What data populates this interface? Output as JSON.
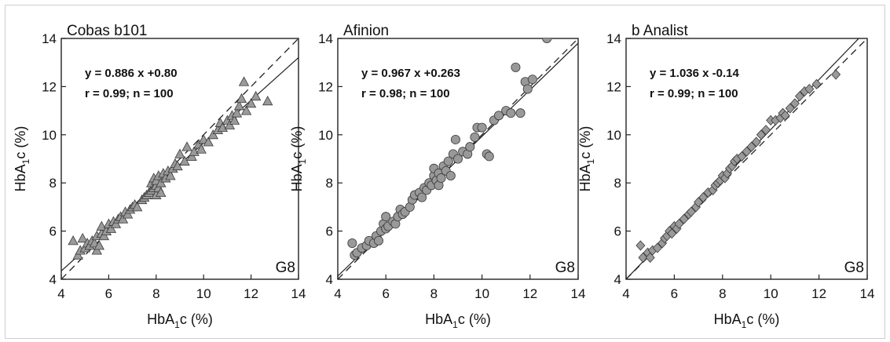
{
  "chart_data": [
    {
      "type": "scatter",
      "title": "Cobas b101",
      "xlabel": "HbA₁c (%)",
      "ylabel": "HbA₁c (%)",
      "corner_label": "G8",
      "xlim": [
        4,
        14
      ],
      "ylim": [
        4,
        14
      ],
      "xticks": [
        "4",
        "6",
        "8",
        "10",
        "12",
        "14"
      ],
      "yticks": [
        "4",
        "6",
        "8",
        "10",
        "12",
        "14"
      ],
      "equation": "y = 0.886 x +0.80",
      "stats": "r = 0.99; n = 100",
      "regression": {
        "slope": 0.886,
        "intercept": 0.8
      },
      "identity_line": true,
      "marker": "triangle",
      "marker_color": "#9a9a9a",
      "points": [
        [
          4.5,
          5.6
        ],
        [
          4.7,
          5.0
        ],
        [
          4.8,
          5.2
        ],
        [
          4.9,
          5.7
        ],
        [
          5.0,
          5.3
        ],
        [
          5.1,
          5.5
        ],
        [
          5.2,
          5.4
        ],
        [
          5.3,
          5.6
        ],
        [
          5.4,
          5.5
        ],
        [
          5.5,
          5.2
        ],
        [
          5.5,
          5.8
        ],
        [
          5.6,
          5.4
        ],
        [
          5.7,
          5.9
        ],
        [
          5.7,
          6.2
        ],
        [
          5.8,
          5.8
        ],
        [
          5.9,
          6.0
        ],
        [
          6.0,
          6.3
        ],
        [
          6.1,
          6.1
        ],
        [
          6.2,
          6.4
        ],
        [
          6.3,
          6.3
        ],
        [
          6.4,
          6.5
        ],
        [
          6.5,
          6.6
        ],
        [
          6.6,
          6.5
        ],
        [
          6.7,
          6.8
        ],
        [
          6.8,
          6.7
        ],
        [
          6.9,
          6.9
        ],
        [
          7.0,
          7.0
        ],
        [
          7.1,
          7.1
        ],
        [
          7.2,
          7.0
        ],
        [
          7.4,
          7.3
        ],
        [
          7.5,
          7.4
        ],
        [
          7.6,
          7.5
        ],
        [
          7.7,
          7.6
        ],
        [
          7.8,
          7.7
        ],
        [
          7.8,
          8.0
        ],
        [
          7.9,
          7.8
        ],
        [
          7.9,
          8.2
        ],
        [
          8.0,
          7.5
        ],
        [
          8.0,
          7.9
        ],
        [
          8.0,
          8.1
        ],
        [
          8.1,
          7.8
        ],
        [
          8.1,
          8.3
        ],
        [
          8.2,
          7.6
        ],
        [
          8.2,
          8.0
        ],
        [
          8.3,
          8.4
        ],
        [
          8.4,
          8.2
        ],
        [
          8.5,
          8.5
        ],
        [
          8.6,
          8.3
        ],
        [
          8.7,
          8.6
        ],
        [
          8.8,
          8.8
        ],
        [
          8.9,
          8.7
        ],
        [
          9.0,
          9.2
        ],
        [
          9.2,
          8.9
        ],
        [
          9.3,
          9.5
        ],
        [
          9.5,
          9.1
        ],
        [
          9.6,
          9.3
        ],
        [
          9.8,
          9.6
        ],
        [
          9.9,
          9.4
        ],
        [
          10.0,
          9.8
        ],
        [
          10.2,
          9.7
        ],
        [
          10.4,
          10.0
        ],
        [
          10.6,
          10.2
        ],
        [
          10.7,
          10.5
        ],
        [
          10.8,
          10.3
        ],
        [
          11.0,
          10.6
        ],
        [
          11.1,
          10.4
        ],
        [
          11.2,
          10.8
        ],
        [
          11.3,
          10.6
        ],
        [
          11.4,
          10.9
        ],
        [
          11.5,
          11.2
        ],
        [
          11.6,
          11.5
        ],
        [
          11.7,
          12.2
        ],
        [
          11.8,
          11.0
        ],
        [
          12.0,
          11.3
        ],
        [
          12.2,
          11.6
        ],
        [
          12.7,
          11.4
        ]
      ]
    },
    {
      "type": "scatter",
      "title": "Afinion",
      "xlabel": "HbA₁c (%)",
      "ylabel": "HbA₁c (%)",
      "corner_label": "G8",
      "xlim": [
        4,
        14
      ],
      "ylim": [
        4,
        14
      ],
      "xticks": [
        "4",
        "6",
        "8",
        "10",
        "12",
        "14"
      ],
      "yticks": [
        "4",
        "6",
        "8",
        "10",
        "12",
        "14"
      ],
      "equation": "y = 0.967 x +0.263",
      "stats": "r = 0.98; n = 100",
      "regression": {
        "slope": 0.967,
        "intercept": 0.263
      },
      "identity_line": true,
      "marker": "circle",
      "marker_color": "#999999",
      "points": [
        [
          4.6,
          5.5
        ],
        [
          4.7,
          5.0
        ],
        [
          4.8,
          5.1
        ],
        [
          5.0,
          5.3
        ],
        [
          5.2,
          5.4
        ],
        [
          5.3,
          5.6
        ],
        [
          5.5,
          5.5
        ],
        [
          5.6,
          5.8
        ],
        [
          5.7,
          5.6
        ],
        [
          5.8,
          6.0
        ],
        [
          5.9,
          6.3
        ],
        [
          6.0,
          6.6
        ],
        [
          6.0,
          6.1
        ],
        [
          6.1,
          6.2
        ],
        [
          6.3,
          6.4
        ],
        [
          6.4,
          6.3
        ],
        [
          6.5,
          6.6
        ],
        [
          6.6,
          6.9
        ],
        [
          6.7,
          6.7
        ],
        [
          6.8,
          6.8
        ],
        [
          7.0,
          7.0
        ],
        [
          7.1,
          7.3
        ],
        [
          7.2,
          7.5
        ],
        [
          7.4,
          7.6
        ],
        [
          7.5,
          7.4
        ],
        [
          7.6,
          7.8
        ],
        [
          7.7,
          7.7
        ],
        [
          7.8,
          8.0
        ],
        [
          7.9,
          7.9
        ],
        [
          8.0,
          8.3
        ],
        [
          8.0,
          8.6
        ],
        [
          8.1,
          8.1
        ],
        [
          8.2,
          7.9
        ],
        [
          8.2,
          8.4
        ],
        [
          8.3,
          8.2
        ],
        [
          8.4,
          8.7
        ],
        [
          8.5,
          8.5
        ],
        [
          8.6,
          8.9
        ],
        [
          8.7,
          8.3
        ],
        [
          8.8,
          9.2
        ],
        [
          8.9,
          9.8
        ],
        [
          9.0,
          9.0
        ],
        [
          9.2,
          9.3
        ],
        [
          9.4,
          9.2
        ],
        [
          9.5,
          9.5
        ],
        [
          9.7,
          9.9
        ],
        [
          9.8,
          10.3
        ],
        [
          10.0,
          10.3
        ],
        [
          10.2,
          9.2
        ],
        [
          10.3,
          9.1
        ],
        [
          10.5,
          10.6
        ],
        [
          10.7,
          10.8
        ],
        [
          11.0,
          11.0
        ],
        [
          11.2,
          10.9
        ],
        [
          11.4,
          12.8
        ],
        [
          11.6,
          10.9
        ],
        [
          11.8,
          12.2
        ],
        [
          11.9,
          11.9
        ],
        [
          12.1,
          12.3
        ],
        [
          12.7,
          14.0
        ]
      ]
    },
    {
      "type": "scatter",
      "title": "b Analist",
      "xlabel": "HbA₁c (%)",
      "ylabel": "HbA₁c (%)",
      "corner_label": "G8",
      "xlim": [
        4,
        14
      ],
      "ylim": [
        4,
        14
      ],
      "xticks": [
        "4",
        "6",
        "8",
        "10",
        "12",
        "14"
      ],
      "yticks": [
        "4",
        "6",
        "8",
        "10",
        "12",
        "14"
      ],
      "equation": "y = 1.036 x -0.14",
      "stats": "r = 0.99; n = 100",
      "regression": {
        "slope": 1.036,
        "intercept": -0.14
      },
      "identity_line": true,
      "marker": "diamond",
      "marker_color": "#9a9a9a",
      "points": [
        [
          4.6,
          5.4
        ],
        [
          4.7,
          4.9
        ],
        [
          4.9,
          5.1
        ],
        [
          5.0,
          4.9
        ],
        [
          5.1,
          5.2
        ],
        [
          5.3,
          5.3
        ],
        [
          5.5,
          5.5
        ],
        [
          5.6,
          5.7
        ],
        [
          5.7,
          5.8
        ],
        [
          5.8,
          6.0
        ],
        [
          5.9,
          5.9
        ],
        [
          6.0,
          6.2
        ],
        [
          6.1,
          6.1
        ],
        [
          6.2,
          6.3
        ],
        [
          6.4,
          6.5
        ],
        [
          6.6,
          6.7
        ],
        [
          6.7,
          6.8
        ],
        [
          6.9,
          7.0
        ],
        [
          7.0,
          7.2
        ],
        [
          7.2,
          7.4
        ],
        [
          7.4,
          7.6
        ],
        [
          7.6,
          7.7
        ],
        [
          7.7,
          7.9
        ],
        [
          7.8,
          8.0
        ],
        [
          7.9,
          8.1
        ],
        [
          8.0,
          8.3
        ],
        [
          8.1,
          8.2
        ],
        [
          8.2,
          8.4
        ],
        [
          8.3,
          8.6
        ],
        [
          8.4,
          8.7
        ],
        [
          8.5,
          8.9
        ],
        [
          8.6,
          9.0
        ],
        [
          8.8,
          9.1
        ],
        [
          9.0,
          9.3
        ],
        [
          9.2,
          9.5
        ],
        [
          9.4,
          9.7
        ],
        [
          9.6,
          10.0
        ],
        [
          9.8,
          10.2
        ],
        [
          10.0,
          10.6
        ],
        [
          10.2,
          10.6
        ],
        [
          10.4,
          10.7
        ],
        [
          10.5,
          10.9
        ],
        [
          10.6,
          10.8
        ],
        [
          10.8,
          11.1
        ],
        [
          11.0,
          11.3
        ],
        [
          11.2,
          11.6
        ],
        [
          11.4,
          11.8
        ],
        [
          11.6,
          11.9
        ],
        [
          11.9,
          12.1
        ],
        [
          12.7,
          12.5
        ]
      ]
    }
  ]
}
